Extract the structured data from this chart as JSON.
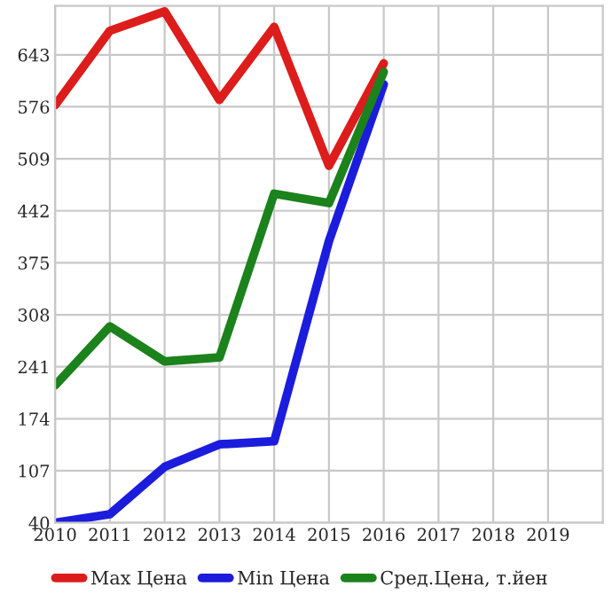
{
  "chart_data": {
    "type": "line",
    "x": [
      2010,
      2011,
      2012,
      2013,
      2014,
      2015,
      2016
    ],
    "series": [
      {
        "name": "Max Цена",
        "color": "#dd1c1c",
        "values": [
          578,
          674,
          699,
          585,
          679,
          500,
          632
        ]
      },
      {
        "name": "Min Цена",
        "color": "#1c1cdd",
        "values": [
          40,
          51,
          112,
          141,
          145,
          403,
          605
        ]
      },
      {
        "name": "Сред.Цена, т.йен",
        "color": "#1c821c",
        "values": [
          217,
          293,
          248,
          253,
          464,
          452,
          621
        ]
      }
    ],
    "xlim": [
      2010,
      2020
    ],
    "xticks": [
      2010,
      2011,
      2012,
      2013,
      2014,
      2015,
      2016,
      2017,
      2018,
      2019
    ],
    "ylim": [
      40,
      706
    ],
    "yticks": [
      40,
      107,
      174,
      241,
      308,
      375,
      442,
      509,
      576,
      643
    ],
    "grid": true,
    "legend": "bottom",
    "marker": "none",
    "line_style": "solid"
  }
}
